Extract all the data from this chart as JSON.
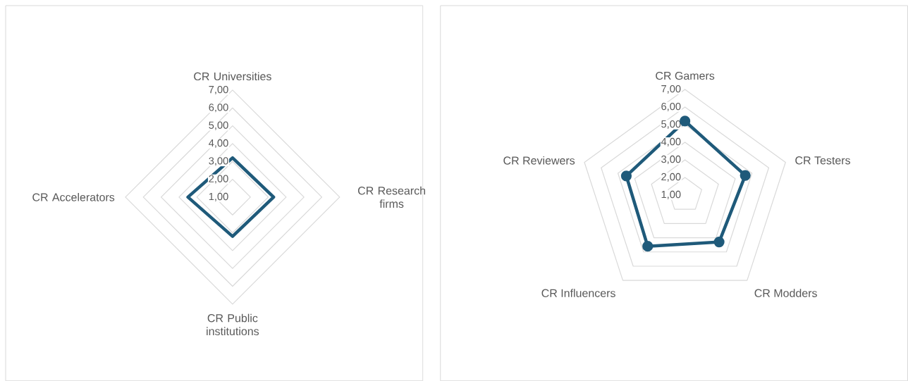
{
  "chart_data": [
    {
      "type": "radar",
      "categories": [
        "CR Universities",
        "CR Research firms",
        "CR Public institutions",
        "CR Accelerators"
      ],
      "series": [
        {
          "color": "#1f5a7a",
          "values": [
            3.2,
            3.3,
            3.2,
            3.5
          ]
        }
      ],
      "ylim": [
        1,
        7
      ],
      "yticks": [
        {
          "value": 1,
          "label": "1,00"
        },
        {
          "value": 2,
          "label": "2,00"
        },
        {
          "value": 3,
          "label": "3,00"
        },
        {
          "value": 4,
          "label": "4,00"
        },
        {
          "value": 5,
          "label": "5,00"
        },
        {
          "value": 6,
          "label": "6,00"
        },
        {
          "value": 7,
          "label": "7,00"
        }
      ],
      "grid": true
    },
    {
      "type": "radar",
      "categories": [
        "CR Gamers",
        "CR Testers",
        "CR Modders",
        "CR Influencers",
        "CR Reviewers"
      ],
      "series": [
        {
          "color": "#1f5a7a",
          "values": [
            5.2,
            4.6,
            4.3,
            4.6,
            4.5
          ]
        }
      ],
      "ylim": [
        1,
        7
      ],
      "yticks": [
        {
          "value": 1,
          "label": "1,00"
        },
        {
          "value": 2,
          "label": "2,00"
        },
        {
          "value": 3,
          "label": "3,00"
        },
        {
          "value": 4,
          "label": "4,00"
        },
        {
          "value": 5,
          "label": "5,00"
        },
        {
          "value": 6,
          "label": "6,00"
        },
        {
          "value": 7,
          "label": "7,00"
        }
      ],
      "grid": true,
      "marker": "circle"
    }
  ]
}
